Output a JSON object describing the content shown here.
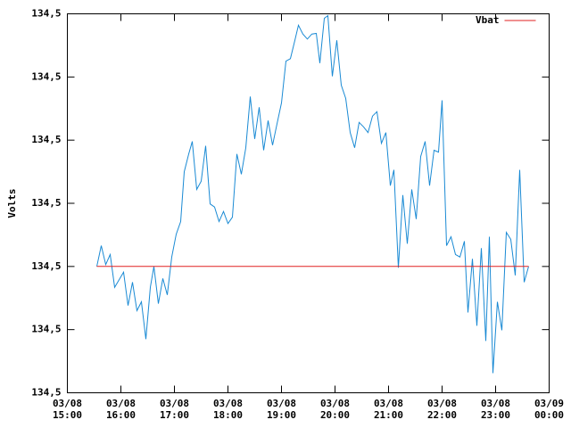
{
  "chart_data": {
    "type": "line",
    "ylabel": "Volts",
    "xlim": [
      "03/08 15:00",
      "03/09 00:00"
    ],
    "xticks": [
      "03/08 15:00",
      "03/08 16:00",
      "03/08 17:00",
      "03/08 18:00",
      "03/08 19:00",
      "03/08 20:00",
      "03/08 21:00",
      "03/08 22:00",
      "03/08 23:00",
      "03/09 00:00"
    ],
    "ylim": [
      134.47,
      134.53
    ],
    "yticks": [
      {
        "value": 134.47,
        "label": "134,5"
      },
      {
        "value": 134.48,
        "label": "134,5"
      },
      {
        "value": 134.49,
        "label": "134,5"
      },
      {
        "value": 134.5,
        "label": "134,5"
      },
      {
        "value": 134.51,
        "label": "134,5"
      },
      {
        "value": 134.52,
        "label": "134,5"
      },
      {
        "value": 134.53,
        "label": "134,5"
      }
    ],
    "legend": "top-right",
    "series": [
      {
        "color": "#1a8ad4",
        "x": [
          "03/08 15:33",
          "03/08 15:38",
          "03/08 15:43",
          "03/08 15:48",
          "03/08 15:53",
          "03/08 15:58",
          "03/08 16:03",
          "03/08 16:08",
          "03/08 16:13",
          "03/08 16:18",
          "03/08 16:23",
          "03/08 16:28",
          "03/08 16:33",
          "03/08 16:37",
          "03/08 16:42",
          "03/08 16:47",
          "03/08 16:52",
          "03/08 16:57",
          "03/08 17:02",
          "03/08 17:07",
          "03/08 17:11",
          "03/08 17:16",
          "03/08 17:20",
          "03/08 17:25",
          "03/08 17:30",
          "03/08 17:35",
          "03/08 17:40",
          "03/08 17:45",
          "03/08 17:50",
          "03/08 17:55",
          "03/08 18:00",
          "03/08 18:05",
          "03/08 18:10",
          "03/08 18:15",
          "03/08 18:20",
          "03/08 18:25",
          "03/08 18:30",
          "03/08 18:35",
          "03/08 18:40",
          "03/08 18:45",
          "03/08 18:50",
          "03/08 18:55",
          "03/08 19:00",
          "03/08 19:05",
          "03/08 19:10",
          "03/08 19:15",
          "03/08 19:19",
          "03/08 19:24",
          "03/08 19:29",
          "03/08 19:34",
          "03/08 19:39",
          "03/08 19:43",
          "03/08 19:48",
          "03/08 19:52",
          "03/08 19:57",
          "03/08 20:02",
          "03/08 20:07",
          "03/08 20:12",
          "03/08 20:17",
          "03/08 20:22",
          "03/08 20:27",
          "03/08 20:32",
          "03/08 20:37",
          "03/08 20:42",
          "03/08 20:47",
          "03/08 20:52",
          "03/08 20:57",
          "03/08 21:02",
          "03/08 21:06",
          "03/08 21:11",
          "03/08 21:16",
          "03/08 21:21",
          "03/08 21:26",
          "03/08 21:31",
          "03/08 21:36",
          "03/08 21:41",
          "03/08 21:46",
          "03/08 21:51",
          "03/08 21:56",
          "03/08 22:00",
          "03/08 22:05",
          "03/08 22:10",
          "03/08 22:15",
          "03/08 22:20",
          "03/08 22:25",
          "03/08 22:29",
          "03/08 22:34",
          "03/08 22:39",
          "03/08 22:44",
          "03/08 22:49",
          "03/08 22:53",
          "03/08 22:57",
          "03/08 23:02",
          "03/08 23:07",
          "03/08 23:12",
          "03/08 23:17",
          "03/08 23:22",
          "03/08 23:27",
          "03/08 23:32",
          "03/08 23:37"
        ],
        "values": [
          134.49,
          134.4933,
          134.4903,
          134.4919,
          134.4867,
          134.4879,
          134.4891,
          134.4838,
          134.4875,
          134.483,
          134.4844,
          134.4785,
          134.4867,
          134.49,
          134.4841,
          134.4881,
          134.4855,
          134.4915,
          134.4951,
          134.4971,
          134.505,
          134.5078,
          134.5098,
          134.5022,
          134.5035,
          134.5091,
          134.4999,
          134.4994,
          134.4971,
          134.4987,
          134.4968,
          134.4978,
          134.5078,
          134.5046,
          134.5088,
          134.5169,
          134.5102,
          134.5152,
          134.5084,
          134.5131,
          134.5092,
          134.5126,
          134.5159,
          134.5225,
          134.5229,
          134.5258,
          134.5282,
          134.5268,
          134.526,
          134.5268,
          134.5269,
          134.5222,
          134.5293,
          134.5297,
          134.5201,
          134.5258,
          134.5187,
          134.5166,
          134.5112,
          134.5088,
          134.5128,
          134.5121,
          134.5112,
          134.5138,
          134.5145,
          134.5095,
          134.5112,
          134.5028,
          134.5053,
          134.4898,
          134.5013,
          134.4936,
          134.5022,
          134.4975,
          134.5074,
          134.5098,
          134.5028,
          134.5084,
          134.5081,
          134.5163,
          134.4933,
          134.4947,
          134.4919,
          134.4915,
          134.494,
          134.4827,
          134.4912,
          134.4806,
          134.4929,
          134.4782,
          134.4947,
          134.4731,
          134.4844,
          134.4799,
          134.4954,
          134.4943,
          134.4886,
          134.5053,
          134.4875,
          134.49
        ]
      },
      {
        "name": "Vbat",
        "color": "#e02020",
        "x": [
          "03/08 15:33",
          "03/08 23:37"
        ],
        "values": [
          134.49,
          134.49
        ]
      }
    ]
  }
}
